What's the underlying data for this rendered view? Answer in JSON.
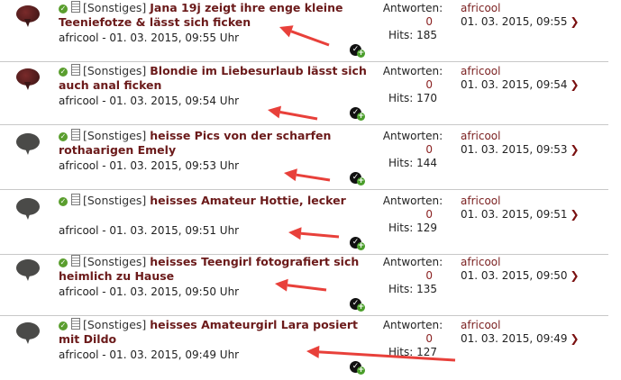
{
  "labels": {
    "prefix": "[Sonstiges]",
    "answers": "Antworten:",
    "hits": "Hits:"
  },
  "threads": [
    {
      "prefix": "",
      "title": "Jana 19j zeigt ihre enge kleine Teeniefotze & lässt sich ficken",
      "meta": "africool - 01. 03. 2015, 09:55 Uhr",
      "answers": "0",
      "hits": "Hits: 185",
      "last_user": "africool",
      "last_date": "01. 03. 2015, 09:55",
      "bubble": "red"
    },
    {
      "prefix": "[Sonstiges]",
      "title": "Blondie im Liebesurlaub lässt sich auch anal ficken",
      "meta": "africool - 01. 03. 2015, 09:54 Uhr",
      "answers": "0",
      "hits": "Hits: 170",
      "last_user": "africool",
      "last_date": "01. 03. 2015, 09:54",
      "bubble": "red"
    },
    {
      "prefix": "[Sonstiges]",
      "title": "heisse Pics von der scharfen rothaarigen Emely",
      "meta": "africool - 01. 03. 2015, 09:53 Uhr",
      "answers": "0",
      "hits": "Hits: 144",
      "last_user": "africool",
      "last_date": "01. 03. 2015, 09:53",
      "bubble": "gray"
    },
    {
      "prefix": "[Sonstiges]",
      "title": "heisses Amateur Hottie, lecker",
      "meta": "africool - 01. 03. 2015, 09:51 Uhr",
      "answers": "0",
      "hits": "Hits: 129",
      "last_user": "africool",
      "last_date": "01. 03. 2015, 09:51",
      "bubble": "gray"
    },
    {
      "prefix": "[Sonstiges]",
      "title": "heisses Teengirl fotografiert sich heimlich zu Hause",
      "meta": "africool - 01. 03. 2015, 09:50 Uhr",
      "answers": "0",
      "hits": "Hits: 135",
      "last_user": "africool",
      "last_date": "01. 03. 2015, 09:50",
      "bubble": "gray"
    },
    {
      "prefix": "[Sonstiges]",
      "title": "heisses Amateurgirl Lara posiert mit Dildo",
      "meta": "africool - 01. 03. 2015, 09:49 Uhr",
      "answers": "0",
      "hits": "Hits: 127",
      "last_user": "africool",
      "last_date": "01. 03. 2015, 09:49",
      "bubble": "gray"
    }
  ],
  "colors": {
    "title": "#6b1a1a",
    "arrow": "#e8403a",
    "check": "#5a9e2e"
  }
}
